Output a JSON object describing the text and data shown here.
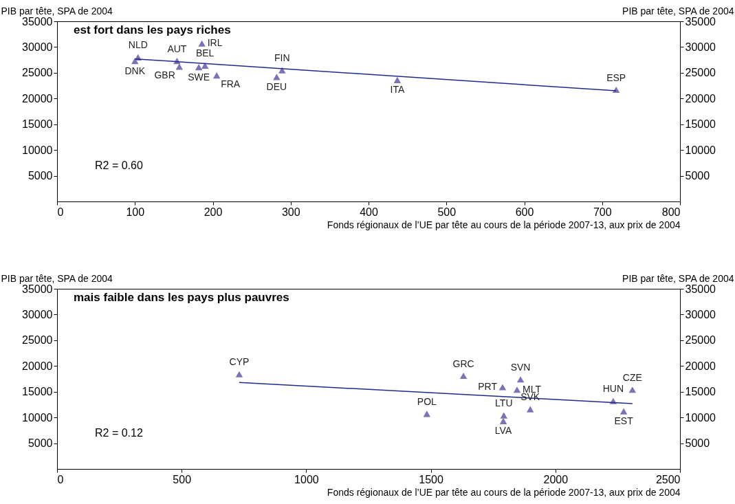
{
  "chart_data": [
    {
      "type": "scatter",
      "title": "est fort dans les pays riches",
      "xlabel": "Fonds régionaux de l’UE par tête au cours de la période 2007-13, aux prix de 2004",
      "ylabel": "PIB par tête, SPA de 2004",
      "y2label": "PIB par tête, SPA de 2004",
      "xlim": [
        0,
        800
      ],
      "xticks": [
        0,
        100,
        200,
        300,
        400,
        500,
        600,
        700,
        800
      ],
      "ylim": [
        0,
        35000
      ],
      "yticks": [
        5000,
        10000,
        15000,
        20000,
        25000,
        30000,
        35000
      ],
      "y2lim": [
        0,
        35000
      ],
      "y2ticks": [
        5000,
        10000,
        15000,
        20000,
        25000,
        30000,
        35000
      ],
      "annotations": [
        "R2 =  0.60"
      ],
      "series": [
        {
          "marker": "triangle",
          "color": "#7b72b8",
          "x": [
            104,
            100,
            154,
            157,
            186,
            182,
            190,
            205,
            289,
            282,
            437,
            718
          ],
          "values": [
            28000,
            27300,
            27300,
            26200,
            30700,
            26100,
            26400,
            24500,
            25500,
            24200,
            23600,
            21700
          ],
          "value_labels": [
            "NLD",
            "DNK",
            "AUT",
            "GBR",
            "IRL",
            "SWE",
            "BEL",
            "FRA",
            "FIN",
            "DEU",
            "ITA",
            "ESP"
          ]
        },
        {
          "type": "line",
          "color": "#1f2a8c",
          "x": [
            100,
            718
          ],
          "values": [
            27700,
            21500
          ]
        }
      ]
    },
    {
      "type": "scatter",
      "title": "mais faible dans les pays plus pauvres",
      "xlabel": "Fonds régionaux de l’UE par tête au cours de la période 2007-13, aux prix de 2004",
      "ylabel": "PIB par tête, SPA de 2004",
      "y2label": "PIB par tête, SPA de 2004",
      "xlim": [
        0,
        2500
      ],
      "xticks": [
        0,
        500,
        1000,
        1500,
        2000,
        2500
      ],
      "ylim": [
        0,
        35000
      ],
      "yticks": [
        5000,
        10000,
        15000,
        20000,
        25000,
        30000,
        35000
      ],
      "y2lim": [
        0,
        35000
      ],
      "y2ticks": [
        5000,
        10000,
        15000,
        20000,
        25000,
        30000,
        35000
      ],
      "annotations": [
        "R2 =  0.12"
      ],
      "series": [
        {
          "marker": "triangle",
          "color": "#7b72b8",
          "x": [
            731,
            1484,
            1631,
            1788,
            1860,
            1846,
            1899,
            1793,
            1791,
            2232,
            2309,
            2274
          ],
          "values": [
            18400,
            10700,
            18100,
            15900,
            17400,
            15400,
            11600,
            10400,
            9300,
            13200,
            15400,
            11200
          ],
          "value_labels": [
            "CYP",
            "POL",
            "GRC",
            "PRT",
            "SVN",
            "MLT",
            "SVK",
            "LTU",
            "LVA",
            "HUN",
            "CZE",
            "EST"
          ]
        },
        {
          "type": "line",
          "color": "#1f2a8c",
          "x": [
            731,
            2309
          ],
          "values": [
            16800,
            12700
          ]
        }
      ]
    }
  ]
}
